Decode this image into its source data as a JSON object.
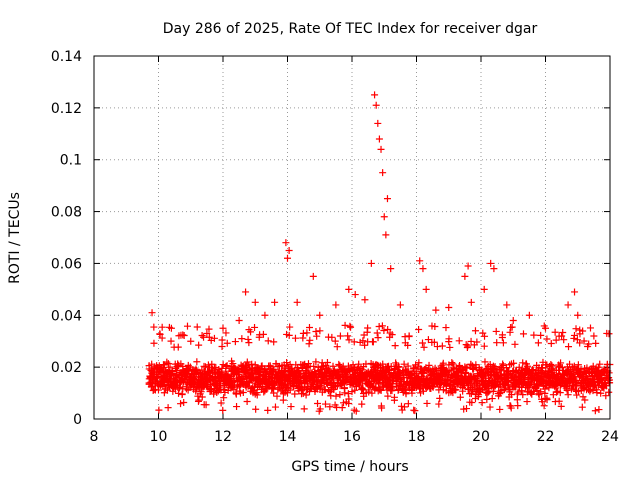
{
  "chart_data": {
    "type": "scatter",
    "title": "Day 286 of 2025, Rate Of TEC Index for receiver dgar",
    "xlabel": "GPS time / hours",
    "ylabel": "ROTI / TECUs",
    "xlim": [
      8,
      24
    ],
    "ylim": [
      0,
      0.14
    ],
    "x_ticks": [
      "8",
      "10",
      "12",
      "14",
      "16",
      "18",
      "20",
      "22",
      "24"
    ],
    "y_ticks": [
      "0",
      "0.02",
      "0.04",
      "0.06",
      "0.08",
      "0.1",
      "0.12",
      "0.14"
    ],
    "grid": true,
    "marker": "+",
    "series": [
      {
        "name": "ROTI",
        "color": "#ff0000",
        "x_range": [
          9.7,
          24.0
        ],
        "typical_band": [
          0.005,
          0.03
        ],
        "x": [
          9.8,
          10.4,
          11.0,
          11.5,
          12.0,
          12.5,
          12.7,
          13.0,
          13.3,
          13.6,
          13.95,
          14.0,
          14.05,
          14.3,
          14.8,
          15.0,
          15.5,
          15.9,
          16.1,
          16.4,
          16.6,
          16.7,
          16.75,
          16.8,
          16.85,
          16.9,
          16.95,
          17.0,
          17.05,
          17.1,
          17.2,
          17.5,
          18.1,
          18.2,
          18.3,
          18.6,
          19.0,
          19.5,
          19.6,
          19.7,
          20.1,
          20.3,
          20.4,
          20.8,
          21.0,
          21.5,
          22.0,
          22.5,
          22.7,
          22.9,
          23.0,
          23.5,
          23.9
        ],
        "y": [
          0.041,
          0.035,
          0.03,
          0.033,
          0.035,
          0.038,
          0.049,
          0.045,
          0.04,
          0.045,
          0.068,
          0.062,
          0.065,
          0.045,
          0.055,
          0.04,
          0.044,
          0.05,
          0.048,
          0.046,
          0.06,
          0.125,
          0.121,
          0.114,
          0.108,
          0.104,
          0.095,
          0.078,
          0.071,
          0.085,
          0.058,
          0.044,
          0.061,
          0.058,
          0.05,
          0.042,
          0.043,
          0.055,
          0.059,
          0.045,
          0.05,
          0.06,
          0.058,
          0.044,
          0.038,
          0.04,
          0.035,
          0.032,
          0.044,
          0.049,
          0.04,
          0.032,
          0.033
        ]
      }
    ]
  }
}
